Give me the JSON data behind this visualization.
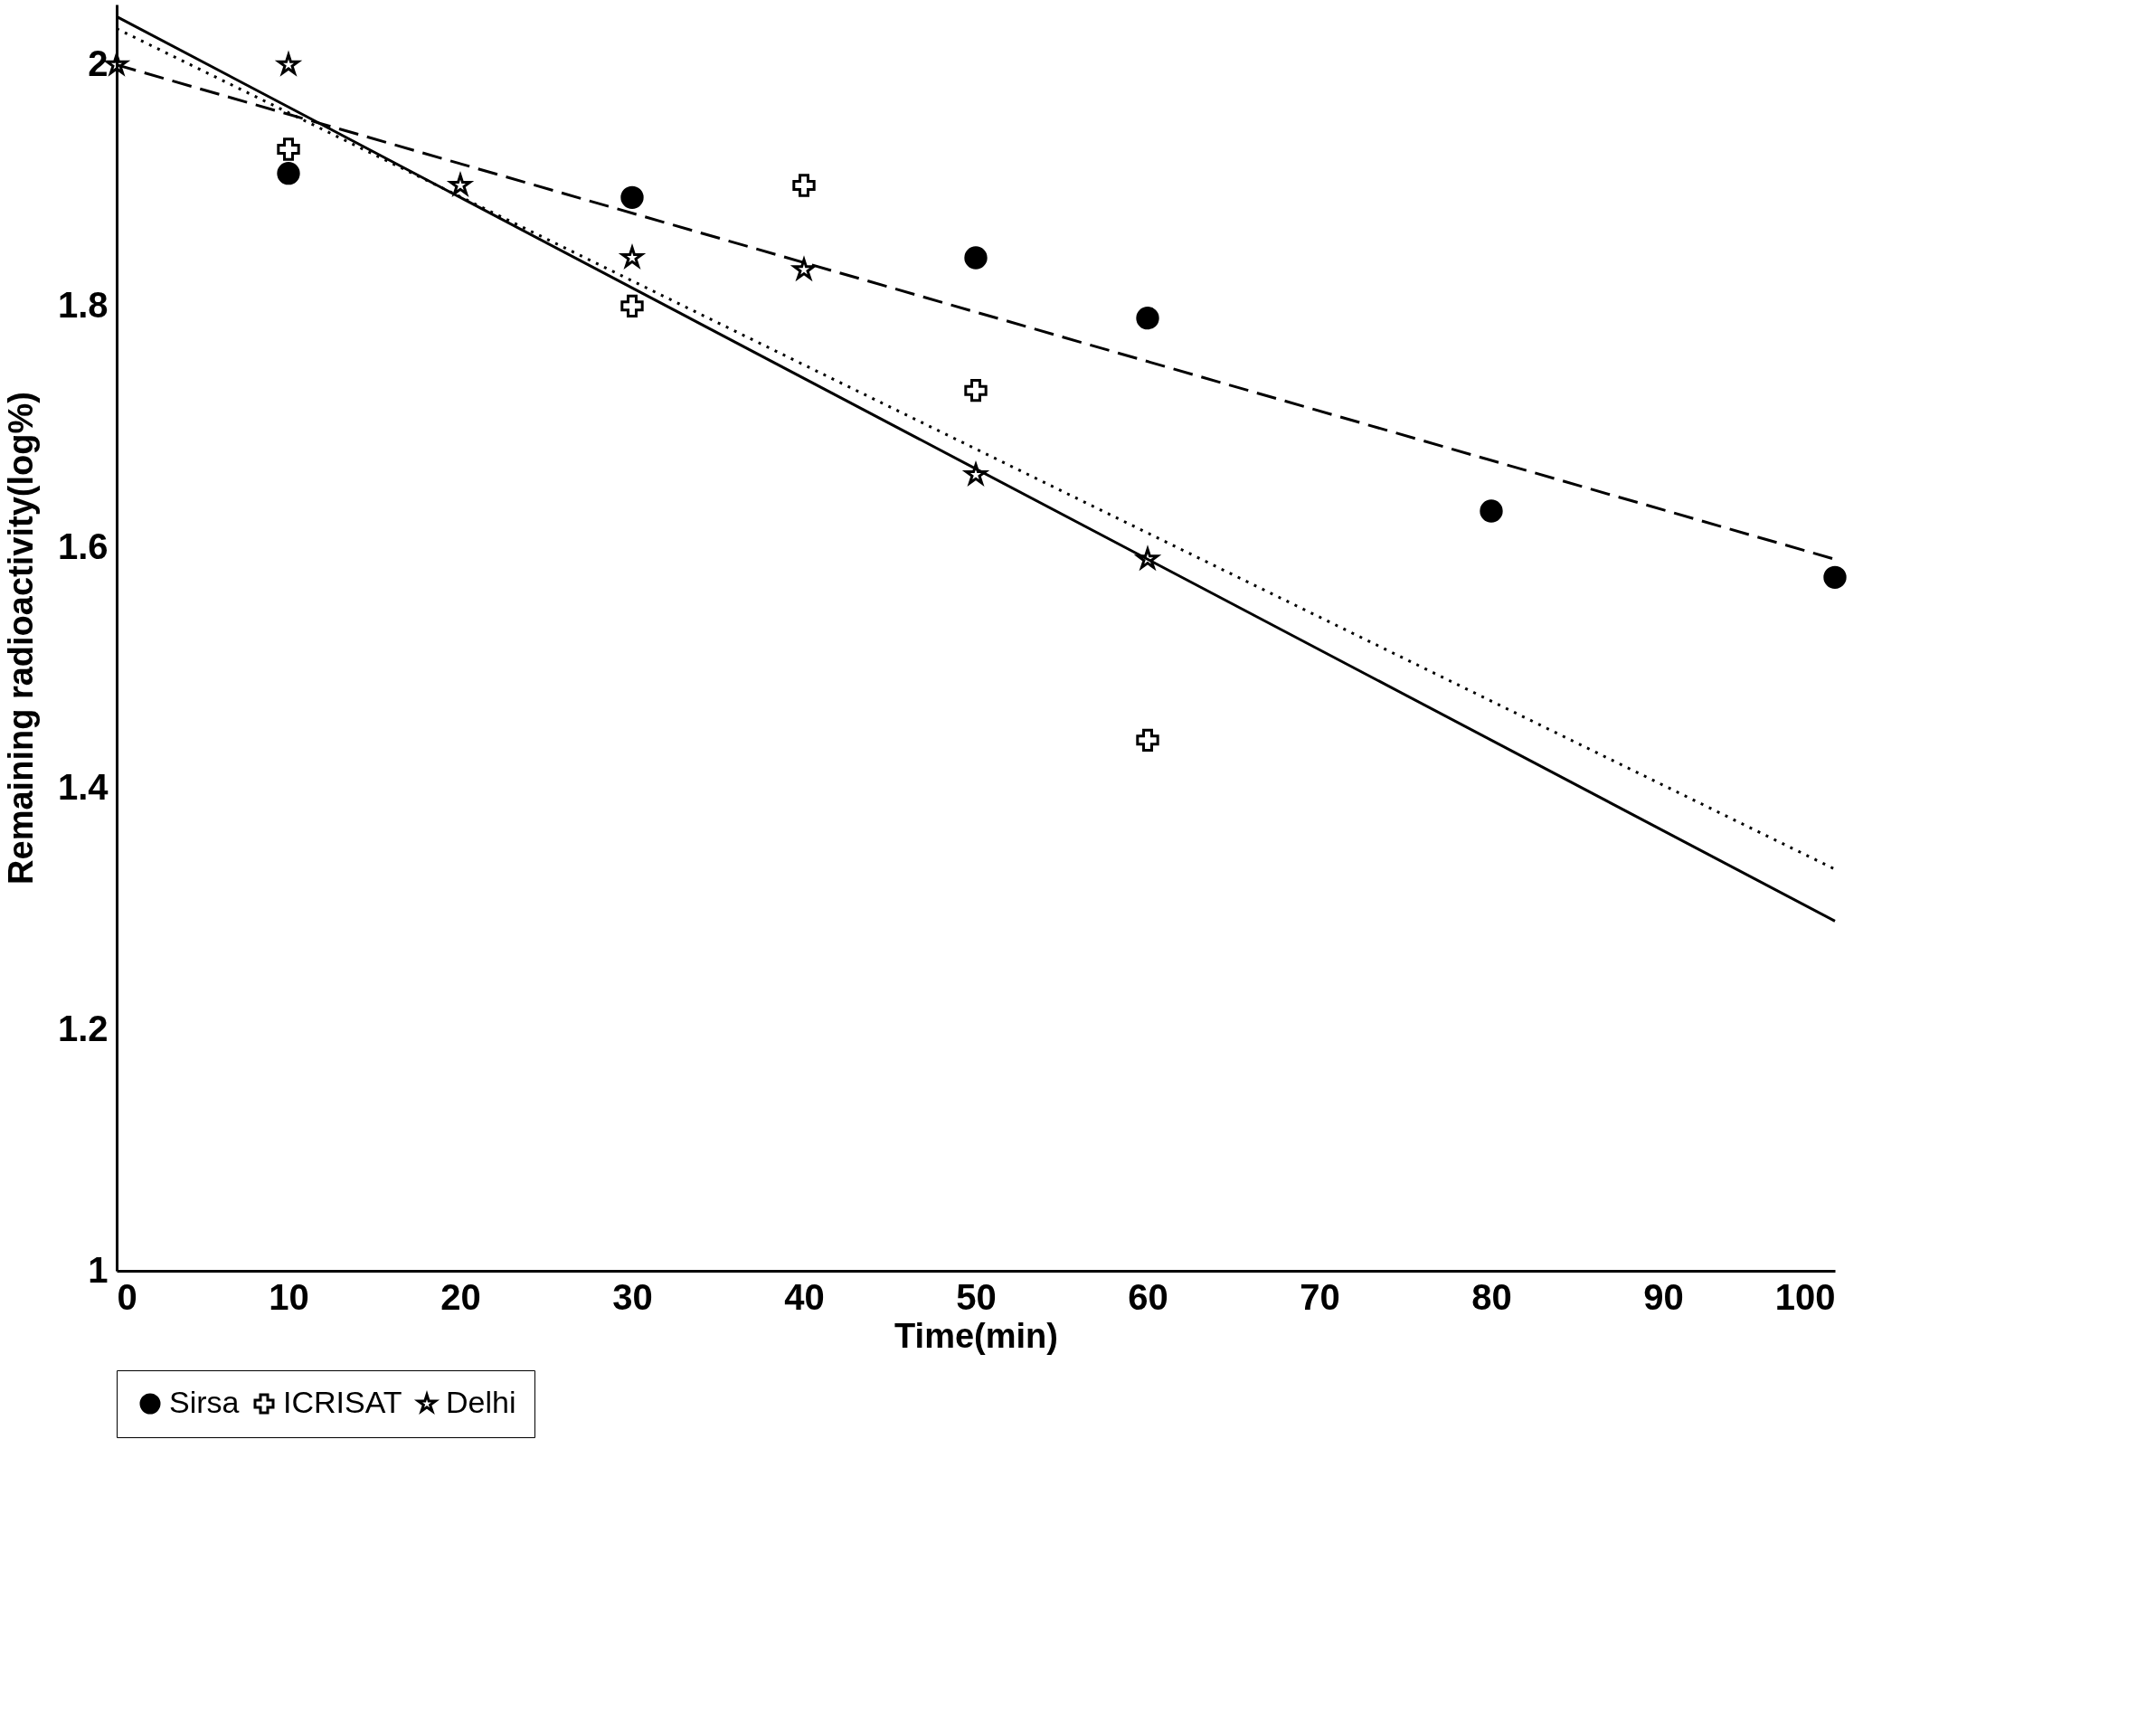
{
  "chart_data": {
    "type": "scatter",
    "xlabel": "Time(min)",
    "ylabel": "Remaining radioactivity(log%)",
    "xlim": [
      0,
      100
    ],
    "xticks": [
      0,
      10,
      20,
      30,
      40,
      50,
      60,
      70,
      80,
      90,
      100
    ],
    "ylim": [
      1,
      2.05
    ],
    "yticks": [
      1,
      1.2,
      1.4,
      1.6,
      1.8,
      2
    ],
    "grid": false,
    "legend": "bottom",
    "series": [
      {
        "name": "Sirsa",
        "type": "scatter",
        "marker": "circle",
        "color": "#000000",
        "x": [
          10,
          30,
          50,
          60,
          80,
          100
        ],
        "values": [
          1.91,
          1.89,
          1.84,
          1.79,
          1.63,
          1.575
        ]
      },
      {
        "name": "ICRISAT",
        "type": "scatter",
        "marker": "cross",
        "color": "#000000",
        "x": [
          10,
          30,
          40,
          50,
          60
        ],
        "values": [
          1.93,
          1.8,
          1.9,
          1.73,
          1.44
        ]
      },
      {
        "name": "Delhi",
        "type": "scatter",
        "marker": "star",
        "color": "#000000",
        "x": [
          0,
          10,
          20,
          30,
          40,
          50,
          60
        ],
        "values": [
          2.0,
          2.0,
          1.9,
          1.84,
          1.83,
          1.66,
          1.59
        ]
      },
      {
        "type": "line",
        "line_style": "dashed",
        "color": "#000000",
        "x": [
          0,
          100
        ],
        "values": [
          2.0,
          1.59
        ]
      },
      {
        "type": "line",
        "line_style": "solid",
        "color": "#000000",
        "x": [
          0,
          100
        ],
        "values": [
          2.04,
          1.29
        ]
      },
      {
        "type": "line",
        "line_style": "dotted",
        "color": "#000000",
        "x": [
          0,
          100
        ],
        "values": [
          2.03,
          1.333
        ]
      }
    ]
  }
}
